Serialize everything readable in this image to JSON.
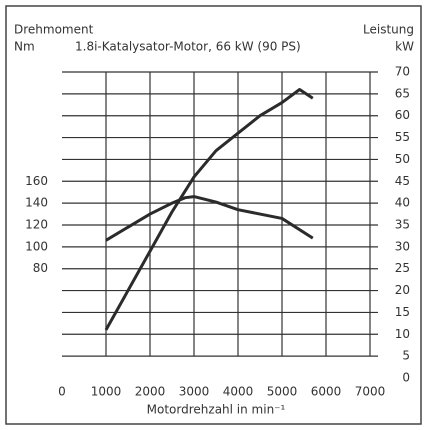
{
  "chart_data": {
    "type": "line",
    "title": "1.8i-Katalysator-Motor, 66 kW (90 PS)",
    "y_label": "Drehmoment",
    "y_unit": "Nm",
    "y2_label": "Leistung",
    "y2_unit": "kW",
    "x_label": "Motordrehzahl in min⁻¹",
    "xlim": [
      0,
      7000
    ],
    "xticks": [
      0,
      1000,
      2000,
      3000,
      4000,
      5000,
      6000,
      7000
    ],
    "ylim": [
      -20,
      260
    ],
    "yticks": [
      80,
      100,
      120,
      140,
      160
    ],
    "y2lim": [
      0,
      70
    ],
    "y2ticks": [
      0,
      5,
      10,
      15,
      20,
      25,
      30,
      35,
      40,
      45,
      50,
      55,
      60,
      65,
      70
    ],
    "grid": true,
    "series": [
      {
        "color": "#2b2b2b",
        "x": [
          1000,
          1500,
          2000,
          2500,
          2800,
          3000,
          3500,
          4000,
          4500,
          5000,
          5700
        ],
        "values": [
          106,
          118,
          130,
          140,
          145,
          146,
          141,
          134,
          130,
          126,
          108
        ]
      },
      {
        "color": "#2b2b2b",
        "axis": "y2",
        "x": [
          1000,
          1500,
          2000,
          2500,
          3000,
          3500,
          4000,
          4500,
          5000,
          5400,
          5700
        ],
        "values": [
          11,
          20,
          29,
          38,
          46,
          52,
          56,
          60,
          63,
          66,
          64
        ]
      }
    ]
  }
}
